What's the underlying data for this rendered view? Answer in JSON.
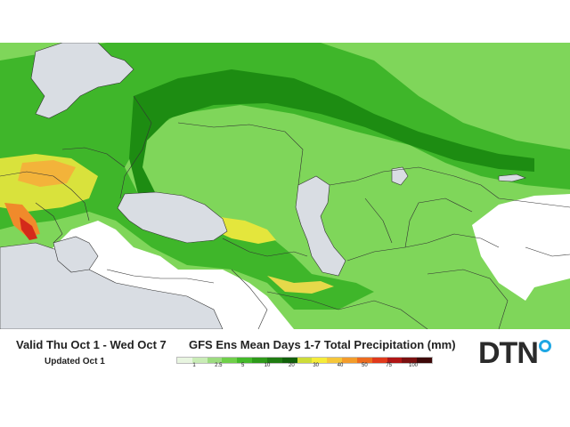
{
  "valid_period": "Valid Thu Oct 1 - Wed Oct 7",
  "updated": "Updated Oct 1",
  "product_title": "GFS Ens Mean Days 1-7 Total Precipitation (mm)",
  "legend": {
    "labels": [
      "1",
      "2.5",
      "5",
      "10",
      "20",
      "30",
      "40",
      "50",
      "75",
      "100"
    ],
    "colors": [
      "#e8f5e0",
      "#c9ecb6",
      "#9cdb7f",
      "#6fcf4a",
      "#44b92a",
      "#2e9a1a",
      "#1f7c12",
      "#12600a",
      "#cddc39",
      "#f5ec3a",
      "#f5c63a",
      "#f39c2b",
      "#ec6b1f",
      "#e03a1c",
      "#b01616",
      "#7a1010",
      "#3d0808"
    ]
  },
  "logo": {
    "text": "DTN",
    "accent_color": "#1ea7e4"
  },
  "map_colors": {
    "water": "#d9dde3",
    "land": "#ffffff",
    "border": "#333333"
  }
}
